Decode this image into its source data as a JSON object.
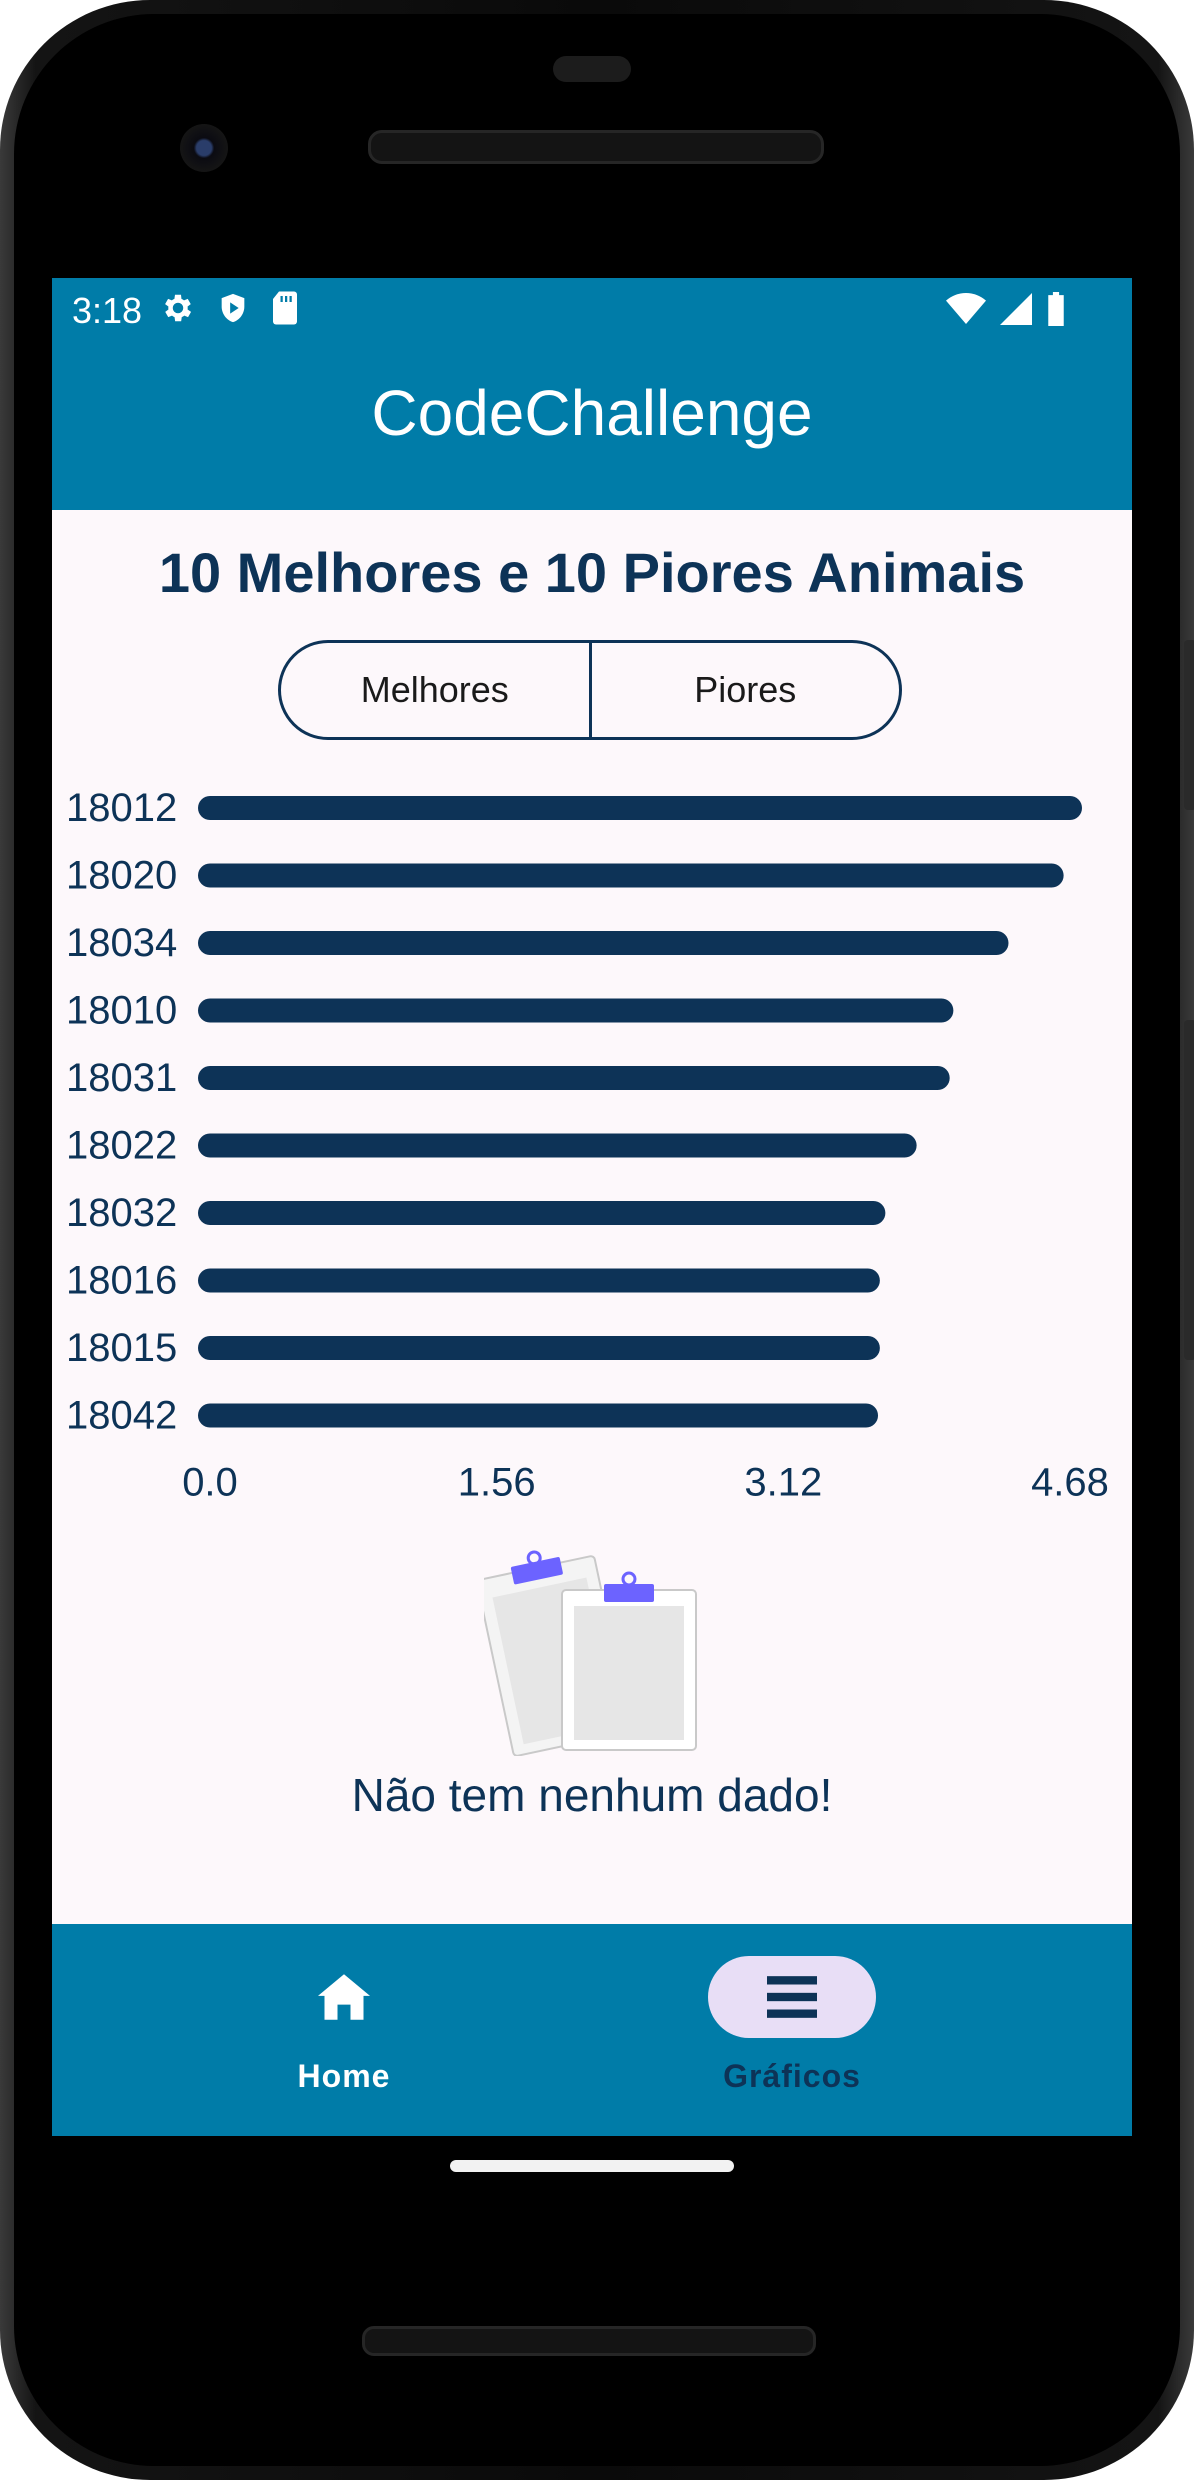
{
  "statusbar": {
    "time": "3:18",
    "left_icons": [
      "gear-icon",
      "shield-play-icon",
      "sd-card-icon"
    ],
    "right_icons": [
      "wifi-icon",
      "cell-signal-icon",
      "battery-icon"
    ]
  },
  "app": {
    "title": "CodeChallenge"
  },
  "page": {
    "heading": "10 Melhores e 10 Piores Animais",
    "toggle": {
      "options": [
        "Melhores",
        "Piores"
      ],
      "selected": "Melhores"
    },
    "empty_state": {
      "icon": "clipboards-illustration-icon",
      "message": "Não tem nenhum dado!"
    }
  },
  "chart_data": {
    "type": "bar",
    "orientation": "horizontal",
    "categories": [
      "18012",
      "18020",
      "18034",
      "18010",
      "18031",
      "18022",
      "18032",
      "18016",
      "18015",
      "18042"
    ],
    "values": [
      4.68,
      4.58,
      4.28,
      3.98,
      3.96,
      3.78,
      3.61,
      3.58,
      3.58,
      3.57
    ],
    "xlim": [
      0,
      4.68
    ],
    "xticks": [
      "0.0",
      "1.56",
      "3.12",
      "4.68"
    ],
    "grid": false,
    "color": "#0d3357"
  },
  "bottomnav": {
    "items": [
      {
        "label": "Home",
        "icon": "home-icon",
        "selected": false
      },
      {
        "label": "Gráficos",
        "icon": "list-bars-icon",
        "selected": true
      }
    ]
  },
  "colors": {
    "primary": "#007ca8",
    "accent_dark": "#0d3357",
    "selected_pill": "#e8def6",
    "background": "#fdf8fb"
  }
}
